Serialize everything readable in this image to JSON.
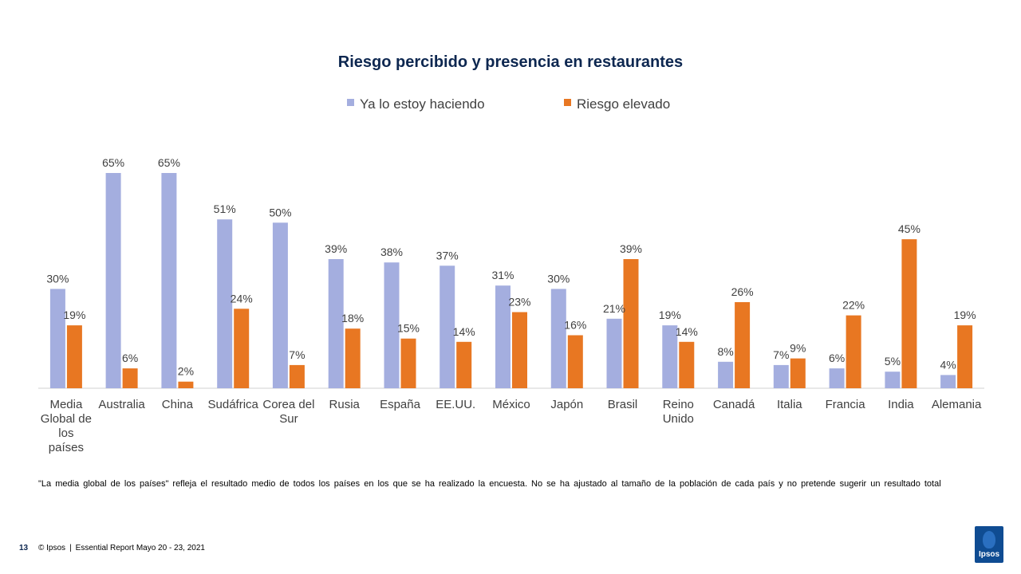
{
  "chart_data": {
    "type": "bar",
    "title": "Riesgo percibido y presencia en restaurantes",
    "categories": [
      [
        "Media",
        "Global de",
        "los",
        "países"
      ],
      [
        "Australia"
      ],
      [
        "China"
      ],
      [
        "Sudáfrica"
      ],
      [
        "Corea del",
        "Sur"
      ],
      [
        "Rusia"
      ],
      [
        "España"
      ],
      [
        "EE.UU."
      ],
      [
        "México"
      ],
      [
        "Japón"
      ],
      [
        "Brasil"
      ],
      [
        "Reino",
        "Unido"
      ],
      [
        "Canadá"
      ],
      [
        "Italia"
      ],
      [
        "Francia"
      ],
      [
        "India"
      ],
      [
        "Alemania"
      ]
    ],
    "series": [
      {
        "name": "Ya lo estoy haciendo",
        "color": "#a4aedf",
        "values": [
          30,
          65,
          65,
          51,
          50,
          39,
          38,
          37,
          31,
          30,
          21,
          19,
          8,
          7,
          6,
          5,
          4
        ],
        "labels": [
          "30%",
          "65%",
          "65%",
          "51%",
          "50%",
          "39%",
          "38%",
          "37%",
          "31%",
          "30%",
          "21%",
          "19%",
          "8%",
          "7%",
          "6%",
          "5%",
          "4%"
        ]
      },
      {
        "name": "Riesgo elevado",
        "color": "#e87722",
        "values": [
          19,
          6,
          2,
          24,
          7,
          18,
          15,
          14,
          23,
          16,
          39,
          14,
          26,
          9,
          22,
          45,
          19
        ],
        "labels": [
          "19%",
          "6%",
          "2%",
          "24%",
          "7%",
          "18%",
          "15%",
          "14%",
          "23%",
          "16%",
          "39%",
          "14%",
          "26%",
          "9%",
          "22%",
          "45%",
          "19%"
        ]
      }
    ],
    "ylim": [
      0,
      70
    ],
    "xlabel": "",
    "ylabel": "",
    "legend": "top-center",
    "grid": false
  },
  "footnote": "\"La media global de los países\" refleja el resultado medio de todos los países en los que se ha realizado la encuesta. No se ha ajustado al tamaño de la población de cada país y no pretende sugerir un resultado total",
  "footer": {
    "page_number": "13",
    "copyright": "© Ipsos",
    "separator": "|",
    "report": "Essential Report  Mayo 20  - 23, 2021",
    "logo_text": "Ipsos"
  }
}
